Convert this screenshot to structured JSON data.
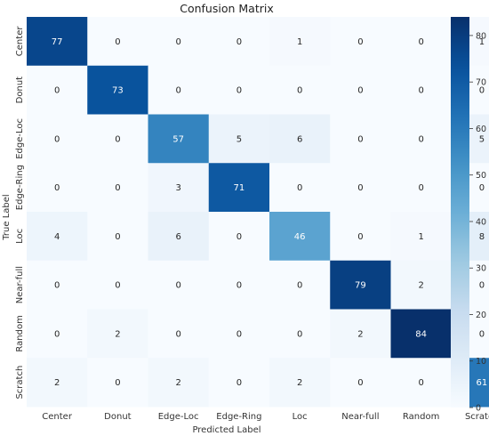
{
  "chart_data": {
    "type": "heatmap",
    "title": "Confusion Matrix",
    "xlabel": "Predicted Label",
    "ylabel": "True Label",
    "x_categories": [
      "Center",
      "Donut",
      "Edge-Loc",
      "Edge-Ring",
      "Loc",
      "Near-full",
      "Random",
      "Scratch"
    ],
    "y_categories": [
      "Center",
      "Donut",
      "Edge-Loc",
      "Edge-Ring",
      "Loc",
      "Near-full",
      "Random",
      "Scratch"
    ],
    "values": [
      [
        77,
        0,
        0,
        0,
        1,
        0,
        0,
        1
      ],
      [
        0,
        73,
        0,
        0,
        0,
        0,
        0,
        0
      ],
      [
        0,
        0,
        57,
        5,
        6,
        0,
        0,
        5
      ],
      [
        0,
        0,
        3,
        71,
        0,
        0,
        0,
        0
      ],
      [
        4,
        0,
        6,
        0,
        46,
        0,
        1,
        8
      ],
      [
        0,
        0,
        0,
        0,
        0,
        79,
        2,
        0
      ],
      [
        0,
        2,
        0,
        0,
        0,
        2,
        84,
        0
      ],
      [
        2,
        0,
        2,
        0,
        2,
        0,
        0,
        61
      ]
    ],
    "colorbar": {
      "min": 0,
      "max": 84,
      "ticks": [
        0,
        10,
        20,
        30,
        40,
        50,
        60,
        70,
        80
      ],
      "colormap": "Blues"
    },
    "colors": {
      "low": "#f7fbff",
      "high": "#08306b"
    }
  }
}
